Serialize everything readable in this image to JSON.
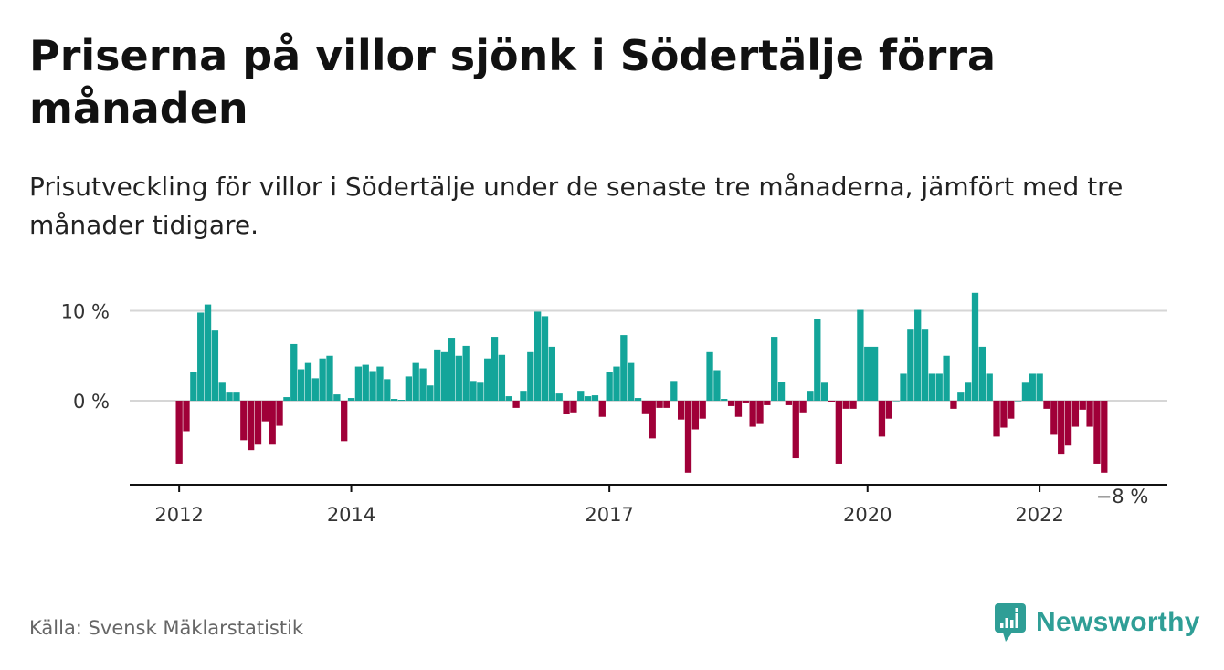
{
  "title": "Priserna på villor sjönk i Södertälje förra månaden",
  "subtitle": "Prisutveckling för villor i Södertälje under de senaste tre månaderna, jämfört med tre månader tidigare.",
  "source": "Källa: Svensk Mäklarstatistik",
  "brand": "Newsworthy",
  "colors": {
    "positive": "#13a59a",
    "negative": "#a00038",
    "grid": "#d6d6d6",
    "axis": "#111111",
    "brand": "#2f9e96"
  },
  "chart_data": {
    "type": "bar",
    "ylim": [
      -9.5,
      11
    ],
    "yticks": [
      {
        "value": 10,
        "label": "10 %"
      },
      {
        "value": 0,
        "label": "0 %"
      }
    ],
    "xticks": [
      {
        "index": 0,
        "label": "2012"
      },
      {
        "index": 24,
        "label": "2014"
      },
      {
        "index": 60,
        "label": "2017"
      },
      {
        "index": 96,
        "label": "2020"
      },
      {
        "index": 120,
        "label": "2022"
      }
    ],
    "annotation": {
      "index": 131,
      "value": -8,
      "label": "−8 %"
    },
    "start": "2012-01",
    "values": [
      -7,
      -3.4,
      3.2,
      9.8,
      10.7,
      7.8,
      2,
      1,
      1,
      -4.4,
      -5.5,
      -4.8,
      -2.3,
      -4.8,
      -2.8,
      0.4,
      6.3,
      3.5,
      4.2,
      2.5,
      4.7,
      5,
      0.7,
      -4.5,
      0.3,
      3.8,
      4,
      3.3,
      3.8,
      2.4,
      0.2,
      0.1,
      2.7,
      4.2,
      3.6,
      1.7,
      5.7,
      5.4,
      7,
      5,
      6.1,
      2.2,
      2,
      4.7,
      7.1,
      5.1,
      0.5,
      -0.8,
      1.1,
      5.4,
      9.9,
      9.4,
      6,
      0.8,
      -1.5,
      -1.3,
      1.1,
      0.5,
      0.6,
      -1.8,
      3.2,
      3.8,
      7.3,
      4.2,
      0.3,
      -1.4,
      -4.2,
      -0.8,
      -0.8,
      2.2,
      -2.1,
      -8,
      -3.2,
      -2,
      5.4,
      3.4,
      0.2,
      -0.6,
      -1.8,
      -0.2,
      -2.9,
      -2.5,
      -0.5,
      7.1,
      2.1,
      -0.5,
      -6.4,
      -1.3,
      1.1,
      9.1,
      2,
      -0.1,
      -7,
      -0.9,
      -0.9,
      10.1,
      6,
      6,
      -4,
      -2,
      0,
      3,
      8,
      10.1,
      8,
      3,
      3,
      5,
      -0.9,
      1,
      2,
      12,
      6,
      3,
      -4,
      -3,
      -2,
      0,
      2,
      3,
      3,
      -0.9,
      -3.8,
      -5.9,
      -5,
      -2.9,
      -1,
      -2.9,
      -7,
      -8
    ]
  }
}
